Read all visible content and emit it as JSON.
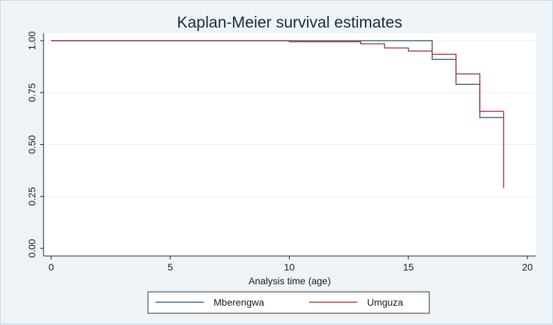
{
  "chart_data": {
    "type": "line",
    "step": true,
    "title": "Kaplan-Meier survival estimates",
    "xlabel": "Analysis time (age)",
    "ylabel": "",
    "xlim": [
      0,
      20
    ],
    "ylim": [
      0,
      1
    ],
    "xticks": [
      "0",
      "5",
      "10",
      "15",
      "20"
    ],
    "yticks": [
      "0.00",
      "0.25",
      "0.50",
      "0.75",
      "1.00"
    ],
    "grid": true,
    "legend_position": "bottom",
    "series": [
      {
        "name": "Mberengwa",
        "color": "#3a5f84",
        "x": [
          0,
          16,
          17,
          18,
          19
        ],
        "y": [
          1.0,
          0.91,
          0.79,
          0.63,
          0.63
        ]
      },
      {
        "name": "Umguza",
        "color": "#a83a3f",
        "x": [
          0,
          10,
          13,
          14,
          15,
          16,
          17,
          18,
          19
        ],
        "y": [
          1.0,
          0.995,
          0.985,
          0.965,
          0.95,
          0.935,
          0.84,
          0.66,
          0.29
        ]
      }
    ]
  }
}
